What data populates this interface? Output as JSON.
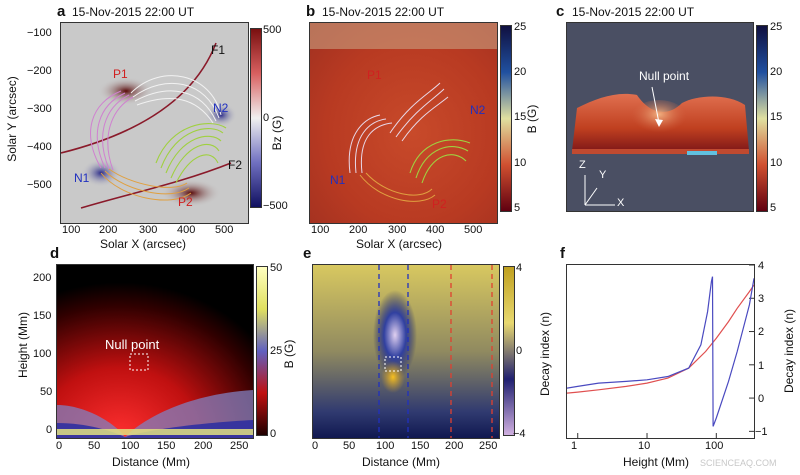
{
  "panel_a": {
    "label": "a",
    "title": "15-Nov-2015 22:00 UT",
    "ylabel": "Solar Y (arcsec)",
    "xlabel": "Solar X (arcsec)",
    "xticks": [
      "100",
      "200",
      "300",
      "400",
      "500"
    ],
    "yticks": [
      "−100",
      "−200",
      "−300",
      "−400",
      "−500"
    ],
    "annotations": {
      "P1": "P1",
      "P2": "P2",
      "N1": "N1",
      "N2": "N2",
      "F1": "F1",
      "F2": "F2"
    },
    "cbar_label": "Bz (G)",
    "cbar_ticks": [
      "500",
      "0",
      "−500"
    ]
  },
  "panel_b": {
    "label": "b",
    "title": "15-Nov-2015 22:00 UT",
    "xlabel": "Solar X (arcsec)",
    "xticks": [
      "100",
      "200",
      "300",
      "400",
      "500"
    ],
    "annotations": {
      "P1": "P1",
      "P2": "P2",
      "N1": "N1",
      "N2": "N2"
    },
    "cbar_label": "B (G)",
    "cbar_ticks": [
      "25",
      "20",
      "15",
      "10",
      "5"
    ]
  },
  "panel_c": {
    "label": "c",
    "title": "15-Nov-2015 22:00 UT",
    "null_point": "Null point",
    "axes": {
      "z": "Z",
      "y": "Y",
      "x": "X"
    },
    "cbar_ticks": [
      "25",
      "20",
      "15",
      "10",
      "5"
    ]
  },
  "panel_d": {
    "label": "d",
    "ylabel": "Height (Mm)",
    "xlabel": "Distance (Mm)",
    "xticks": [
      "0",
      "50",
      "100",
      "150",
      "200",
      "250"
    ],
    "yticks": [
      "200",
      "150",
      "100",
      "50",
      "0"
    ],
    "null_point": "Null point",
    "cbar_label": "B (G)",
    "cbar_ticks": [
      "50",
      "25",
      "0"
    ]
  },
  "panel_e": {
    "label": "e",
    "xlabel": "Distance (Mm)",
    "xticks": [
      "0",
      "50",
      "100",
      "150",
      "200",
      "250"
    ],
    "cbar_label": "Decay index (n)",
    "cbar_ticks": [
      "4",
      "0",
      "−4"
    ]
  },
  "panel_f": {
    "label": "f",
    "xlabel": "Height (Mm)",
    "ylabel": "Decay index (n)",
    "xticks": [
      "1",
      "10",
      "100"
    ],
    "yticks": [
      "4",
      "3",
      "2",
      "1",
      "0",
      "−1"
    ],
    "watermark": "SCIENCEAQ.COM"
  },
  "colors": {
    "bz_pos": "#7a1a1a",
    "bz_neg": "#1a1a6e",
    "red_line": "#e05050",
    "blue_line": "#4a4ac0",
    "yellow": "#f0e060"
  },
  "chart_data": [
    {
      "type": "line",
      "panel": "f",
      "xscale": "log",
      "xlabel": "Height (Mm)",
      "ylabel": "Decay index (n)",
      "xlim": [
        0.7,
        350
      ],
      "ylim": [
        -1.2,
        4
      ],
      "series": [
        {
          "color": "#e05050",
          "x": [
            0.7,
            1,
            2,
            5,
            10,
            20,
            40,
            70,
            100,
            150,
            200,
            300,
            350
          ],
          "y": [
            0.15,
            0.18,
            0.25,
            0.35,
            0.45,
            0.6,
            0.9,
            1.4,
            1.8,
            2.3,
            2.7,
            3.2,
            3.4
          ]
        },
        {
          "color": "#4a4ac0",
          "x": [
            0.7,
            1,
            2,
            5,
            10,
            20,
            40,
            60,
            75,
            85,
            88,
            90,
            100,
            150,
            200,
            300,
            350
          ],
          "y": [
            0.3,
            0.35,
            0.45,
            0.5,
            0.55,
            0.65,
            0.9,
            1.6,
            2.6,
            3.5,
            3.65,
            -0.85,
            -0.6,
            0.5,
            1.4,
            2.8,
            3.6
          ]
        }
      ]
    }
  ]
}
